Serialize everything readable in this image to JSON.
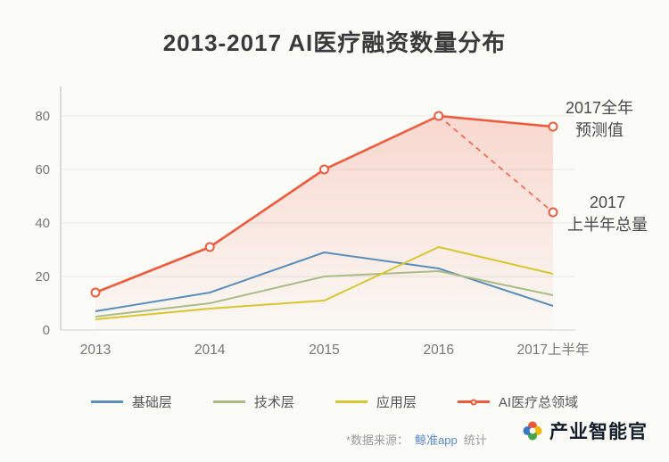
{
  "chart_data": {
    "type": "line",
    "title": "2013-2017 AI医疗融资数量分布",
    "categories": [
      "2013",
      "2014",
      "2015",
      "2016",
      "2017上半年"
    ],
    "xlabel": "",
    "ylabel": "",
    "ylim": [
      0,
      80
    ],
    "yticks": [
      0,
      20,
      40,
      60,
      80
    ],
    "grid": true,
    "legend_position": "bottom",
    "series": [
      {
        "name": "基础层",
        "color": "#5a8fbb",
        "values": [
          7,
          14,
          29,
          23,
          9
        ]
      },
      {
        "name": "技术层",
        "color": "#a9bd85",
        "values": [
          5,
          10,
          20,
          22,
          13
        ]
      },
      {
        "name": "应用层",
        "color": "#d8c62e",
        "values": [
          4,
          8,
          11,
          31,
          21
        ]
      },
      {
        "name": "AI医疗总领域",
        "color": "#ed5a3c",
        "values": [
          14,
          31,
          60,
          80,
          76
        ],
        "marker": "circle",
        "area_fill": true
      }
    ],
    "projection": {
      "name": "2017上半年总量",
      "color": "#ed5a3c",
      "style": "dashed",
      "from": {
        "category": "2016",
        "value": 80
      },
      "to": {
        "category": "2017上半年",
        "value": 44
      }
    },
    "annotations": [
      {
        "id": "forecast",
        "lines": [
          "2017全年",
          "预测值"
        ]
      },
      {
        "id": "half_year_total",
        "lines": [
          "2017",
          "上半年总量"
        ]
      }
    ]
  },
  "footer": {
    "source_prefix": "*数据来源：",
    "source_app": "鲸准app",
    "source_suffix": "统计",
    "watermark": "产业智能官"
  }
}
